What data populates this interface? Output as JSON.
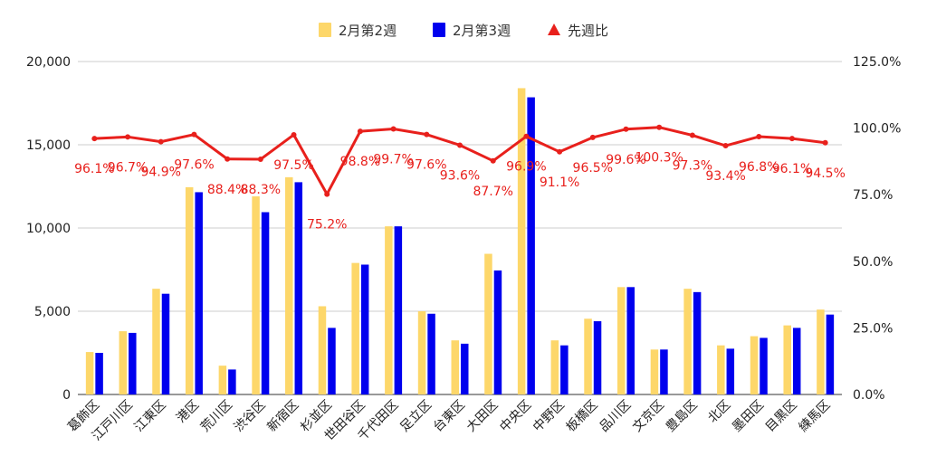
{
  "chart_data": {
    "type": "bar",
    "categories": [
      "葛飾区",
      "江戸川区",
      "江東区",
      "港区",
      "荒川区",
      "渋谷区",
      "新宿区",
      "杉並区",
      "世田谷区",
      "千代田区",
      "足立区",
      "台東区",
      "大田区",
      "中央区",
      "中野区",
      "板橋区",
      "品川区",
      "文京区",
      "豊島区",
      "北区",
      "墨田区",
      "目黒区",
      "練馬区"
    ],
    "series": [
      {
        "name": "2月第2週",
        "kind": "bar",
        "axis": "left",
        "color": "#fdd76a",
        "values": [
          2550,
          3800,
          6350,
          12450,
          1730,
          11900,
          13050,
          5300,
          7900,
          10100,
          5000,
          3250,
          8450,
          18400,
          3250,
          4550,
          6450,
          2700,
          6350,
          2950,
          3500,
          4150,
          5100
        ]
      },
      {
        "name": "2月第3週",
        "kind": "bar",
        "axis": "left",
        "color": "#0000ee",
        "values": [
          2500,
          3700,
          6050,
          12150,
          1500,
          10950,
          12750,
          4000,
          7800,
          10100,
          4850,
          3050,
          7450,
          17850,
          2950,
          4400,
          6450,
          2700,
          6150,
          2750,
          3400,
          4000,
          4800
        ]
      },
      {
        "name": "先週比",
        "kind": "line",
        "axis": "right",
        "color": "#e8201c",
        "values": [
          96.1,
          96.7,
          94.9,
          97.6,
          88.4,
          88.3,
          97.5,
          75.2,
          98.8,
          99.7,
          97.6,
          93.6,
          87.7,
          96.9,
          91.1,
          96.5,
          99.6,
          100.3,
          97.3,
          93.4,
          96.8,
          96.1,
          94.5
        ],
        "labels": [
          "96.1%",
          "96.7%",
          "94.9%",
          "97.6%",
          "88.4%",
          "88.3%",
          "97.5%",
          "75.2%",
          "98.8%",
          "99.7%",
          "97.6%",
          "93.6%",
          "87.7%",
          "96.9%",
          "91.1%",
          "96.5%",
          "99.6%",
          "100.3%",
          "97.3%",
          "93.4%",
          "96.8%",
          "96.1%",
          "94.5%"
        ]
      }
    ],
    "y_left": {
      "min": 0,
      "max": 20000,
      "ticks": [
        0,
        5000,
        10000,
        15000,
        20000
      ],
      "tick_labels": [
        "0",
        "5,000",
        "10,000",
        "15,000",
        "20,000"
      ]
    },
    "y_right": {
      "min": 0,
      "max": 125,
      "ticks": [
        0,
        25,
        50,
        75,
        100,
        125
      ],
      "tick_labels": [
        "0.0%",
        "25.0%",
        "50.0%",
        "75.0%",
        "100.0%",
        "125.0%"
      ]
    },
    "legend_position": "top-center",
    "grid": true,
    "title": "",
    "xlabel": "",
    "ylabel": ""
  }
}
